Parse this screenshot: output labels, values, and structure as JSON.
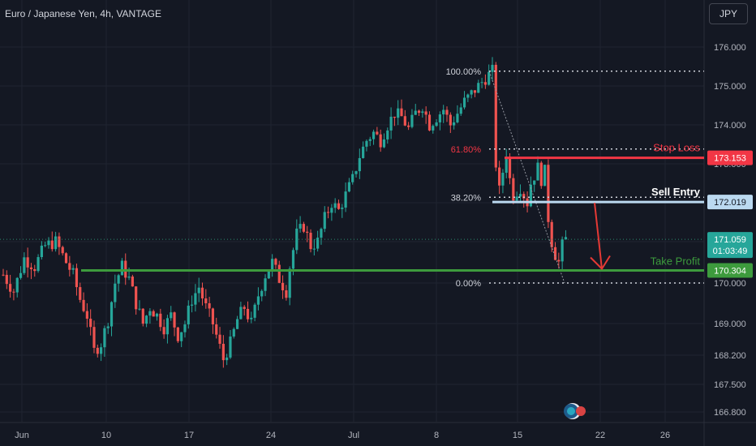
{
  "header": {
    "title": "Euro / Japanese Yen, 4h, VANTAGE",
    "currency_button": "JPY"
  },
  "colors": {
    "background": "#141823",
    "grid": "#1f2430",
    "bull": "#26a69a",
    "bear": "#ef5350",
    "stop_loss": "#f23645",
    "sell_entry": "#bbd9f0",
    "take_profit": "#3d9b3d",
    "fib_level": "#cfd2da",
    "arrow": "#e53935",
    "axis_text": "#b2b5be"
  },
  "chart_data": {
    "type": "candlestick",
    "instrument": "Euro / Japanese Yen",
    "timeframe": "4h",
    "broker": "VANTAGE",
    "y_axis": {
      "ticks": [
        "176.000",
        "175.000",
        "174.000",
        "173.000",
        "172.000",
        "171.000",
        "170.000",
        "169.000",
        "168.200",
        "167.500",
        "166.800"
      ],
      "tick_values": [
        176.0,
        175.0,
        174.0,
        173.0,
        172.0,
        171.0,
        170.0,
        169.0,
        168.2,
        167.5,
        166.8
      ],
      "range": [
        166.6,
        176.4
      ]
    },
    "x_axis": {
      "ticks": [
        "Jun",
        "10",
        "17",
        "24",
        "Jul",
        "8",
        "15",
        "22",
        "26"
      ]
    },
    "fibonacci": [
      {
        "label": "100.00%",
        "price": 175.38
      },
      {
        "label": "61.80%",
        "price": 173.38
      },
      {
        "label": "38.20%",
        "price": 172.14
      },
      {
        "label": "0.00%",
        "price": 170.0
      }
    ],
    "levels": {
      "stop_loss": {
        "label": "Stop Loss",
        "price_label": "173.153",
        "price": 173.153
      },
      "sell_entry": {
        "label": "Sell Entry",
        "price_label": "172.019",
        "price": 172.019
      },
      "take_profit": {
        "label": "Take Profit",
        "price_label": "170.304",
        "price": 170.304
      }
    },
    "current_price": {
      "label": "171.059",
      "price": 171.059,
      "countdown": "01:03:49"
    },
    "price_path": [
      [
        0,
        170.2
      ],
      [
        3,
        169.8
      ],
      [
        6,
        170.6
      ],
      [
        9,
        170.4
      ],
      [
        12,
        170.9
      ],
      [
        15,
        171.0
      ],
      [
        18,
        170.5
      ],
      [
        20,
        170.2
      ],
      [
        22,
        169.6
      ],
      [
        24,
        169.2
      ],
      [
        26,
        168.3
      ],
      [
        28,
        168.5
      ],
      [
        30,
        169.1
      ],
      [
        32,
        170.0
      ],
      [
        34,
        170.4
      ],
      [
        36,
        170.1
      ],
      [
        38,
        169.5
      ],
      [
        40,
        169.0
      ],
      [
        42,
        169.4
      ],
      [
        44,
        169.2
      ],
      [
        46,
        168.9
      ],
      [
        48,
        169.2
      ],
      [
        50,
        168.7
      ],
      [
        52,
        169.0
      ],
      [
        54,
        169.6
      ],
      [
        56,
        169.9
      ],
      [
        58,
        169.4
      ],
      [
        60,
        169.0
      ],
      [
        62,
        168.4
      ],
      [
        63,
        168.1
      ],
      [
        65,
        168.5
      ],
      [
        67,
        169.1
      ],
      [
        69,
        169.4
      ],
      [
        71,
        169.0
      ],
      [
        73,
        169.7
      ],
      [
        75,
        170.2
      ],
      [
        77,
        170.5
      ],
      [
        79,
        170.1
      ],
      [
        81,
        169.8
      ],
      [
        82,
        170.4
      ],
      [
        84,
        171.2
      ],
      [
        86,
        171.4
      ],
      [
        88,
        170.9
      ],
      [
        90,
        171.0
      ],
      [
        92,
        171.6
      ],
      [
        94,
        172.0
      ],
      [
        96,
        171.8
      ],
      [
        98,
        172.2
      ],
      [
        100,
        172.6
      ],
      [
        102,
        173.2
      ],
      [
        104,
        173.6
      ],
      [
        106,
        173.8
      ],
      [
        108,
        173.6
      ],
      [
        110,
        174.0
      ],
      [
        112,
        174.3
      ],
      [
        114,
        174.2
      ],
      [
        116,
        173.9
      ],
      [
        118,
        174.3
      ],
      [
        120,
        174.5
      ],
      [
        122,
        174.0
      ],
      [
        124,
        174.2
      ],
      [
        126,
        174.4
      ],
      [
        128,
        174.0
      ],
      [
        130,
        174.3
      ],
      [
        132,
        174.6
      ],
      [
        134,
        174.8
      ],
      [
        136,
        175.0
      ],
      [
        138,
        175.2
      ],
      [
        140,
        175.38
      ],
      [
        141,
        173.0
      ],
      [
        142,
        172.3
      ],
      [
        143,
        172.8
      ],
      [
        144,
        173.3
      ],
      [
        145,
        172.6
      ],
      [
        146,
        172.2
      ],
      [
        148,
        172.4
      ],
      [
        150,
        172.0
      ],
      [
        151,
        172.5
      ],
      [
        152,
        172.7
      ],
      [
        153,
        172.9
      ],
      [
        154,
        172.6
      ],
      [
        155,
        172.8
      ],
      [
        156,
        171.6
      ],
      [
        157,
        171.0
      ],
      [
        158,
        170.7
      ],
      [
        159,
        170.5
      ],
      [
        160,
        170.9
      ],
      [
        161,
        171.06
      ]
    ],
    "annotations": [
      "Stop Loss",
      "Sell Entry",
      "Take Profit"
    ]
  }
}
